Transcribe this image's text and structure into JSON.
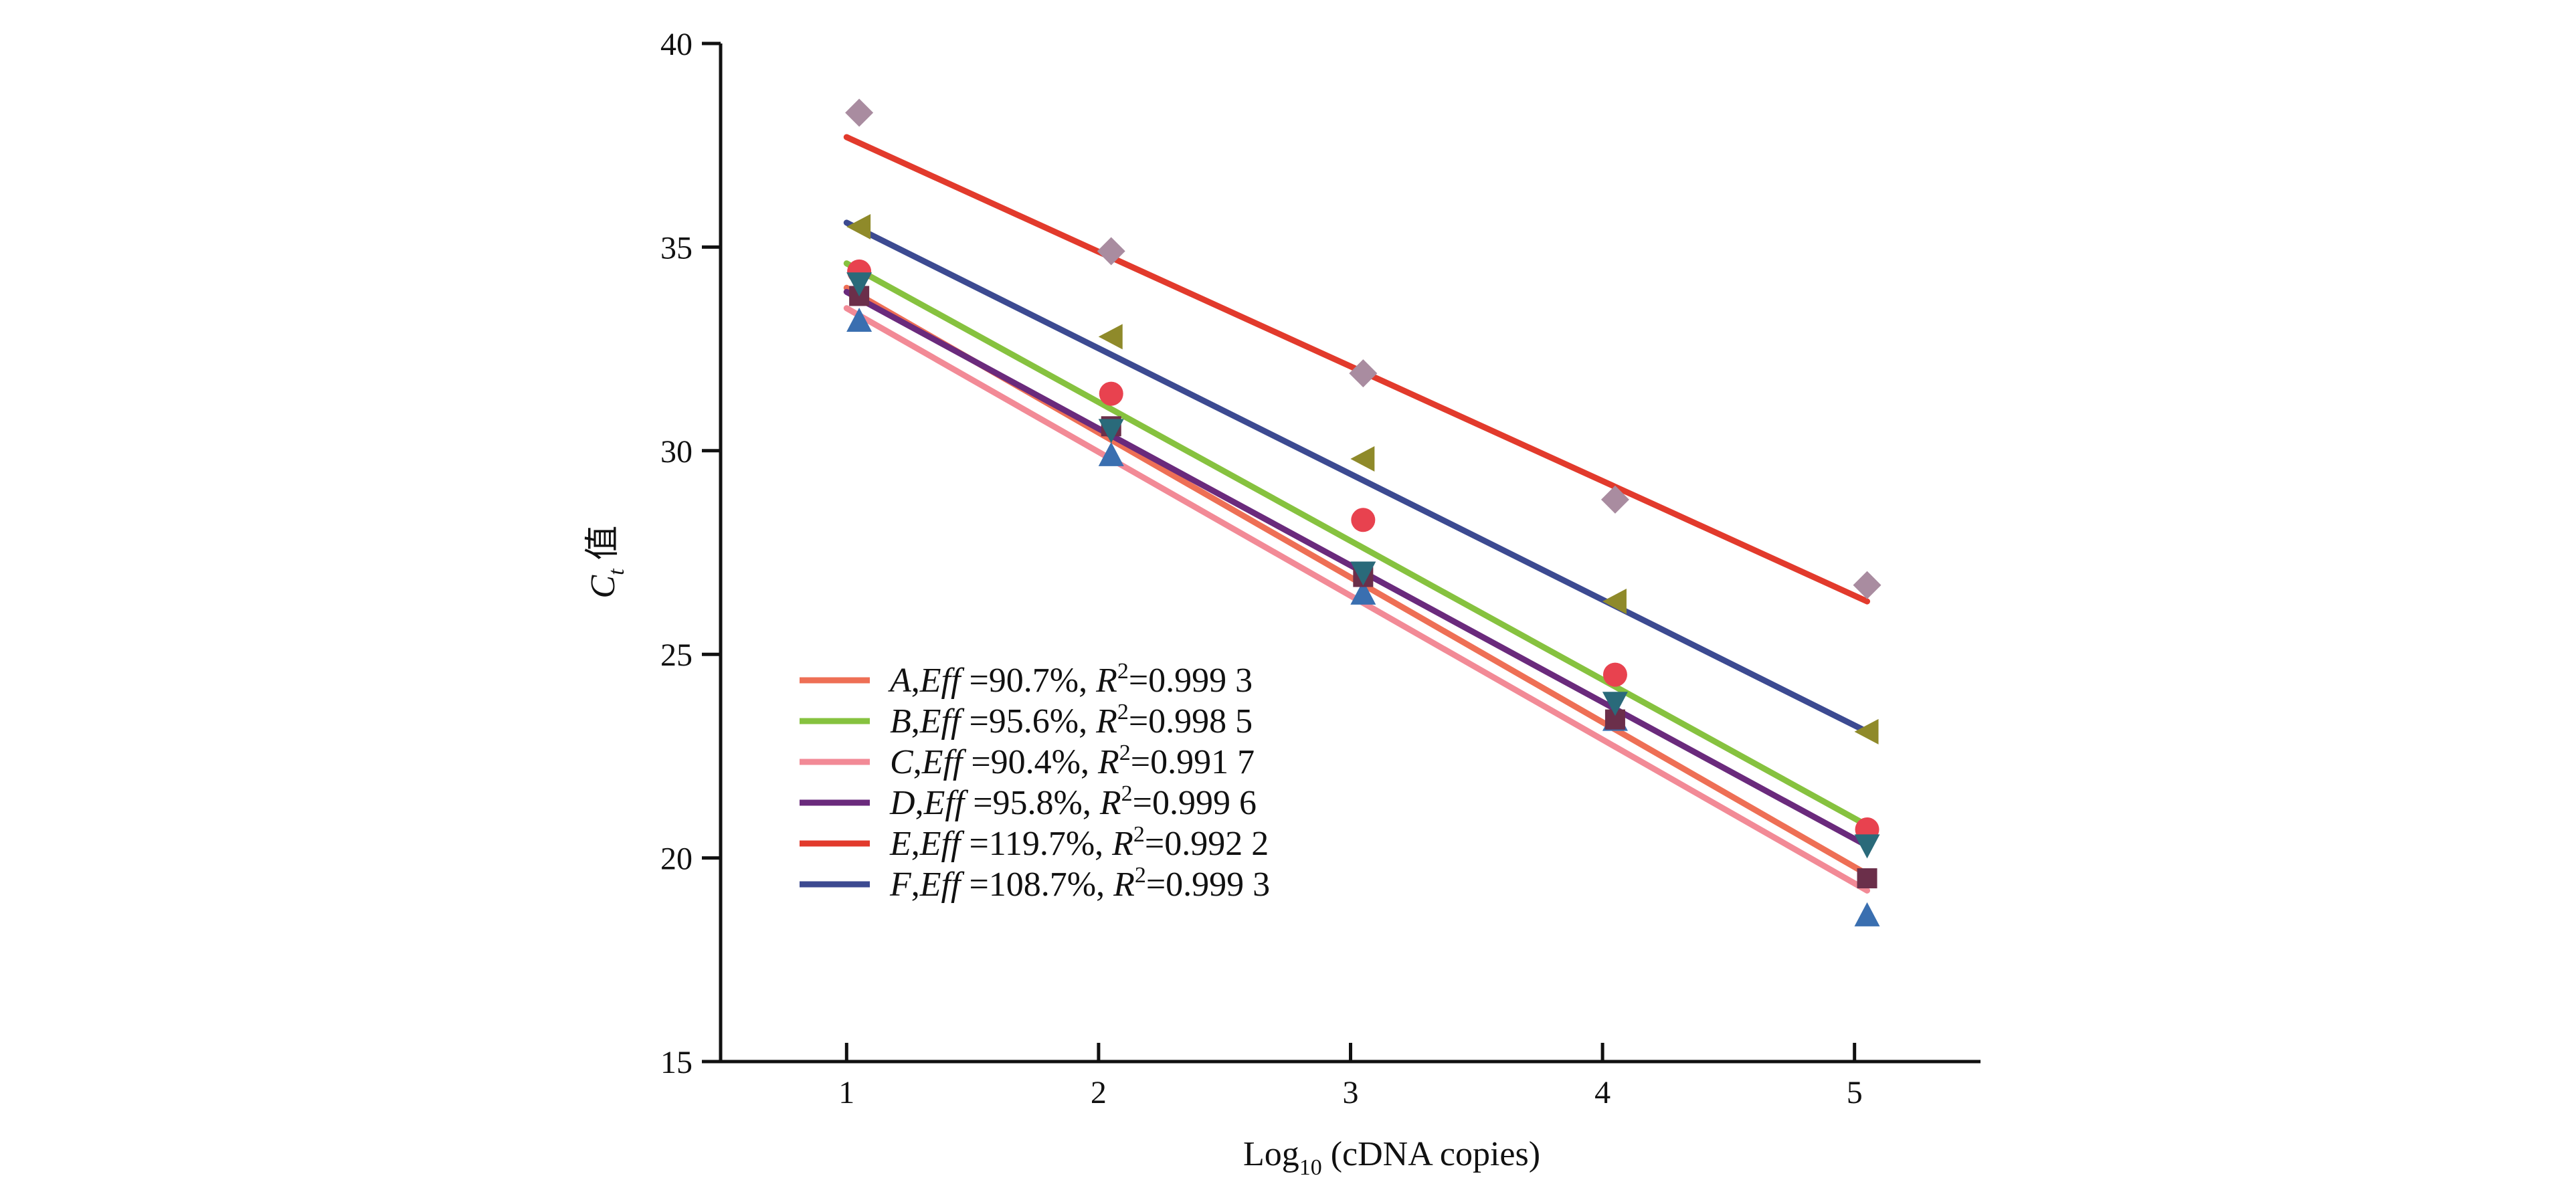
{
  "chart_data": {
    "type": "scatter",
    "xlabel": {
      "main": "Log",
      "sub": "10",
      "rest": " (cDNA copies)"
    },
    "ylabel": {
      "main": "C",
      "sub": "t",
      "rest": " 值"
    },
    "xlim": [
      0.5,
      5.5
    ],
    "ylim": [
      15,
      40
    ],
    "xticks": [
      1,
      2,
      3,
      4,
      5
    ],
    "yticks": [
      15,
      20,
      25,
      30,
      35,
      40
    ],
    "legend_position": "bottom-left",
    "grid": false,
    "series": [
      {
        "name": "A",
        "eff": "=90.7%",
        "r2": "=0.999 3",
        "color": "#ee6f55",
        "marker": "circle",
        "marker_color": "#e8424f",
        "x": [
          1.05,
          2.05,
          3.05,
          4.05,
          5.05
        ],
        "y": [
          34.4,
          31.4,
          28.3,
          24.5,
          20.7
        ],
        "fit": {
          "x": [
            1.0,
            5.05
          ],
          "y": [
            34.0,
            19.6
          ]
        }
      },
      {
        "name": "B",
        "eff": "=95.6%",
        "r2": "=0.998 5",
        "color": "#86c23f",
        "marker": "triangle-left",
        "marker_color": "#8f8a2a",
        "x": [
          1.05,
          2.05,
          3.05,
          4.05,
          5.05
        ],
        "y": [
          35.5,
          32.8,
          29.8,
          26.3,
          23.1
        ],
        "fit": {
          "x": [
            1.0,
            5.05
          ],
          "y": [
            34.6,
            20.8
          ]
        }
      },
      {
        "name": "C",
        "eff": "=90.4%",
        "r2": "=0.991 7",
        "color": "#f28a96",
        "marker": "triangle-up",
        "marker_color": "#3a6fb0",
        "x": [
          1.05,
          2.05,
          3.05,
          4.05,
          5.05
        ],
        "y": [
          33.2,
          29.9,
          26.5,
          23.4,
          18.6
        ],
        "fit": {
          "x": [
            1.0,
            5.05
          ],
          "y": [
            33.5,
            19.2
          ]
        }
      },
      {
        "name": "D",
        "eff": "=95.8%",
        "r2": "=0.999 6",
        "color": "#6a2a7c",
        "marker": "square",
        "marker_color": "#6b2f4a",
        "x": [
          1.05,
          2.05,
          3.05,
          4.05,
          5.05
        ],
        "y": [
          33.8,
          30.6,
          26.9,
          23.4,
          19.5
        ],
        "fit": {
          "x": [
            1.0,
            5.05
          ],
          "y": [
            33.9,
            20.3
          ]
        }
      },
      {
        "name": "E",
        "eff": "=119.7%",
        "r2": "=0.992 2",
        "color": "#e23a2c",
        "marker": "diamond",
        "marker_color": "#a98ca0",
        "x": [
          1.05,
          2.05,
          3.05,
          4.05,
          5.05
        ],
        "y": [
          38.3,
          34.9,
          31.9,
          28.8,
          26.7
        ],
        "fit": {
          "x": [
            1.0,
            5.05
          ],
          "y": [
            37.7,
            26.3
          ]
        }
      },
      {
        "name": "F",
        "eff": "=108.7%",
        "r2": "=0.999 3",
        "color": "#3c4a91",
        "marker": "triangle-down",
        "marker_color": "#2a6a7a",
        "x": [
          1.05,
          2.05,
          3.05,
          4.05,
          5.05
        ],
        "y": [
          34.1,
          30.5,
          27.0,
          23.8,
          20.3
        ],
        "fit": {
          "x": [
            1.0,
            5.05
          ],
          "y": [
            35.6,
            23.1
          ]
        }
      }
    ]
  }
}
